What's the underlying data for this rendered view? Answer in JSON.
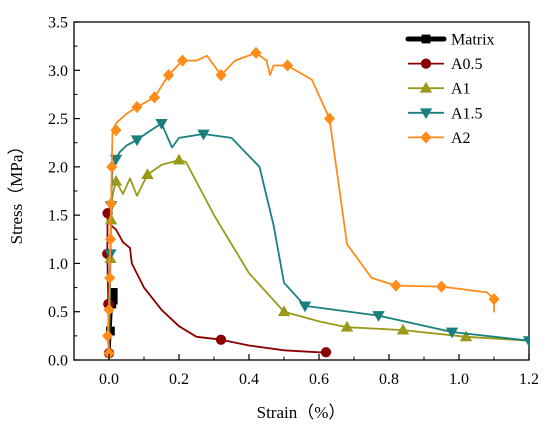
{
  "chart_data": {
    "type": "line",
    "title": "",
    "xlabel": "Strain（%）",
    "ylabel": "Stress（MPa）",
    "xlim": [
      -0.1,
      1.2
    ],
    "ylim": [
      0,
      3.5
    ],
    "xticks": [
      0.0,
      0.2,
      0.4,
      0.6,
      0.8,
      1.0,
      1.2
    ],
    "xtick_labels": [
      "0.0",
      "0.2",
      "0.4",
      "0.6",
      "0.8",
      "1.0",
      "1.2"
    ],
    "yticks": [
      0.0,
      0.5,
      1.0,
      1.5,
      2.0,
      2.5,
      3.0,
      3.5
    ],
    "ytick_labels": [
      "0.0",
      "0.5",
      "1.0",
      "1.5",
      "2.0",
      "2.5",
      "3.0",
      "3.5"
    ],
    "grid": false,
    "legend_position": "top-right",
    "series": [
      {
        "name": "Matrix",
        "color": "#000000",
        "marker": "square",
        "x": [
          0.0,
          0.002,
          0.004,
          0.006,
          0.008,
          0.01,
          0.012,
          0.014,
          0.012,
          0.01
        ],
        "y": [
          0.07,
          0.2,
          0.35,
          0.5,
          0.58,
          0.65,
          0.7,
          0.68,
          0.6,
          0.55
        ],
        "markers": [
          [
            0.004,
            0.3
          ],
          [
            0.008,
            0.58
          ],
          [
            0.012,
            0.7
          ],
          [
            0.012,
            0.62
          ]
        ]
      },
      {
        "name": "A0.5",
        "color": "#8b0000",
        "marker": "circle",
        "x": [
          0.0,
          -0.002,
          -0.005,
          -0.004,
          0.0,
          0.01,
          0.02,
          0.04,
          0.06,
          0.065,
          0.1,
          0.15,
          0.2,
          0.25,
          0.3,
          0.32,
          0.4,
          0.5,
          0.6,
          0.62
        ],
        "y": [
          0.07,
          0.58,
          1.1,
          1.52,
          1.42,
          1.38,
          1.35,
          1.22,
          1.16,
          1.0,
          0.75,
          0.52,
          0.35,
          0.24,
          0.22,
          0.21,
          0.15,
          0.1,
          0.08,
          0.08
        ],
        "markers": [
          [
            0.0,
            0.07
          ],
          [
            -0.002,
            0.58
          ],
          [
            -0.005,
            1.1
          ],
          [
            -0.004,
            1.52
          ],
          [
            0.32,
            0.21
          ],
          [
            0.62,
            0.08
          ]
        ]
      },
      {
        "name": "A1",
        "color": "#9a9a1a",
        "marker": "triangle-up",
        "x": [
          0.0,
          0.002,
          0.004,
          0.006,
          0.01,
          0.02,
          0.04,
          0.06,
          0.08,
          0.11,
          0.15,
          0.2,
          0.22,
          0.3,
          0.4,
          0.5,
          0.6,
          0.68,
          0.84,
          1.02,
          1.2
        ],
        "y": [
          0.07,
          0.55,
          1.05,
          1.45,
          1.7,
          1.85,
          1.72,
          1.88,
          1.7,
          1.92,
          2.02,
          2.07,
          2.05,
          1.5,
          0.9,
          0.5,
          0.4,
          0.34,
          0.31,
          0.24,
          0.2
        ],
        "markers": [
          [
            0.004,
            1.05
          ],
          [
            0.006,
            1.45
          ],
          [
            0.02,
            1.85
          ],
          [
            0.11,
            1.92
          ],
          [
            0.2,
            2.07
          ],
          [
            0.5,
            0.5
          ],
          [
            0.68,
            0.34
          ],
          [
            0.84,
            0.31
          ],
          [
            1.02,
            0.24
          ]
        ]
      },
      {
        "name": "A1.5",
        "color": "#1a7f7f",
        "marker": "triangle-down",
        "x": [
          0.0,
          0.002,
          0.004,
          0.006,
          0.01,
          0.02,
          0.03,
          0.05,
          0.08,
          0.12,
          0.15,
          0.18,
          0.2,
          0.27,
          0.35,
          0.43,
          0.47,
          0.48,
          0.5,
          0.56,
          0.77,
          0.98,
          1.2
        ],
        "y": [
          0.07,
          0.55,
          1.1,
          1.6,
          2.0,
          2.08,
          2.15,
          2.22,
          2.28,
          2.38,
          2.45,
          2.2,
          2.3,
          2.34,
          2.3,
          2.0,
          1.4,
          1.2,
          0.8,
          0.56,
          0.46,
          0.29,
          0.2
        ],
        "markers": [
          [
            0.004,
            1.1
          ],
          [
            0.006,
            1.6
          ],
          [
            0.02,
            2.08
          ],
          [
            0.08,
            2.28
          ],
          [
            0.15,
            2.45
          ],
          [
            0.27,
            2.34
          ],
          [
            0.56,
            0.56
          ],
          [
            0.77,
            0.46
          ],
          [
            0.98,
            0.29
          ],
          [
            1.2,
            0.2
          ]
        ]
      },
      {
        "name": "A2",
        "color": "#ff8c1a",
        "marker": "diamond",
        "x": [
          0.0,
          -0.004,
          0.0,
          0.002,
          0.004,
          0.006,
          0.008,
          0.01,
          0.02,
          0.05,
          0.08,
          0.11,
          0.13,
          0.17,
          0.21,
          0.25,
          0.28,
          0.32,
          0.36,
          0.42,
          0.45,
          0.46,
          0.47,
          0.51,
          0.58,
          0.63,
          0.68,
          0.75,
          0.82,
          0.95,
          1.08,
          1.1,
          1.1
        ],
        "y": [
          0.07,
          0.25,
          0.52,
          0.85,
          1.25,
          1.62,
          2.0,
          2.38,
          2.45,
          2.55,
          2.62,
          2.68,
          2.72,
          2.95,
          3.1,
          3.1,
          3.15,
          2.95,
          3.1,
          3.18,
          3.1,
          2.95,
          3.05,
          3.05,
          2.9,
          2.5,
          1.2,
          0.85,
          0.77,
          0.76,
          0.7,
          0.63,
          0.5
        ],
        "markers": [
          [
            0.0,
            0.07
          ],
          [
            -0.004,
            0.25
          ],
          [
            0.0,
            0.52
          ],
          [
            0.002,
            0.85
          ],
          [
            0.004,
            1.25
          ],
          [
            0.006,
            1.62
          ],
          [
            0.008,
            2.0
          ],
          [
            0.02,
            2.38
          ],
          [
            0.08,
            2.62
          ],
          [
            0.13,
            2.72
          ],
          [
            0.17,
            2.95
          ],
          [
            0.21,
            3.1
          ],
          [
            0.32,
            2.95
          ],
          [
            0.42,
            3.18
          ],
          [
            0.51,
            3.05
          ],
          [
            0.63,
            2.5
          ],
          [
            0.82,
            0.77
          ],
          [
            0.95,
            0.76
          ],
          [
            1.1,
            0.63
          ]
        ]
      }
    ]
  }
}
